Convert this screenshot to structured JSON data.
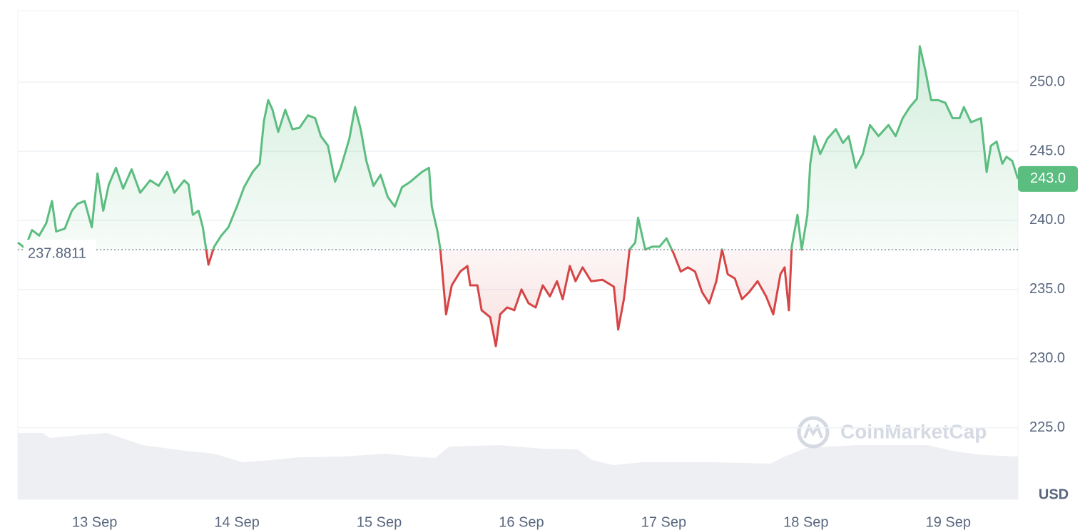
{
  "chart_data": {
    "type": "line",
    "x": [
      12.46,
      12.51,
      12.56,
      12.61,
      12.66,
      12.7,
      12.73,
      12.79,
      12.84,
      12.88,
      12.93,
      12.98,
      13.02,
      13.06,
      13.1,
      13.15,
      13.2,
      13.26,
      13.32,
      13.39,
      13.45,
      13.51,
      13.56,
      13.63,
      13.66,
      13.69,
      13.73,
      13.76,
      13.8,
      13.84,
      13.89,
      13.94,
      14.0,
      14.05,
      14.11,
      14.16,
      14.19,
      14.22,
      14.25,
      14.29,
      14.34,
      14.39,
      14.44,
      14.5,
      14.55,
      14.59,
      14.64,
      14.69,
      14.73,
      14.79,
      14.83,
      14.87,
      14.91,
      14.96,
      15.01,
      15.06,
      15.11,
      15.16,
      15.22,
      15.3,
      15.35,
      15.37,
      15.41,
      15.43,
      15.47,
      15.51,
      15.57,
      15.62,
      15.64,
      15.69,
      15.72,
      15.78,
      15.82,
      15.85,
      15.9,
      15.95,
      16.0,
      16.05,
      16.1,
      16.15,
      16.2,
      16.25,
      16.29,
      16.34,
      16.38,
      16.43,
      16.49,
      16.57,
      16.65,
      16.68,
      16.72,
      16.76,
      16.8,
      16.82,
      16.87,
      16.92,
      16.97,
      17.02,
      17.07,
      17.12,
      17.17,
      17.22,
      17.27,
      17.32,
      17.37,
      17.41,
      17.45,
      17.5,
      17.55,
      17.6,
      17.66,
      17.72,
      17.77,
      17.82,
      17.85,
      17.88,
      17.9,
      17.94,
      17.97,
      18.01,
      18.03,
      18.06,
      18.1,
      18.15,
      18.21,
      18.26,
      18.3,
      18.35,
      18.4,
      18.45,
      18.51,
      18.58,
      18.63,
      18.68,
      18.73,
      18.78,
      18.8,
      18.84,
      18.88,
      18.93,
      18.98,
      19.03,
      19.08,
      19.11,
      19.16,
      19.23,
      19.27,
      19.3,
      19.34,
      19.38,
      19.41,
      19.45,
      19.49
    ],
    "values": [
      238.4,
      238.0,
      239.3,
      238.9,
      239.8,
      241.4,
      239.2,
      239.4,
      240.7,
      241.2,
      241.4,
      239.5,
      243.4,
      240.7,
      242.6,
      243.8,
      242.3,
      243.7,
      242.0,
      242.9,
      242.5,
      243.5,
      242.0,
      242.9,
      242.6,
      240.4,
      240.7,
      239.5,
      236.8,
      238.1,
      238.9,
      239.5,
      241.0,
      242.4,
      243.5,
      244.1,
      247.2,
      248.7,
      248.0,
      246.4,
      248.0,
      246.6,
      246.7,
      247.6,
      247.4,
      246.1,
      245.4,
      242.8,
      243.8,
      245.9,
      248.2,
      246.6,
      244.3,
      242.5,
      243.3,
      241.7,
      241.0,
      242.4,
      242.8,
      243.5,
      243.8,
      241.0,
      239.2,
      237.9,
      233.2,
      235.3,
      236.3,
      236.7,
      235.3,
      235.3,
      233.5,
      233.0,
      230.9,
      233.2,
      233.7,
      233.5,
      235.0,
      234.0,
      233.7,
      235.3,
      234.5,
      235.6,
      234.3,
      236.7,
      235.6,
      236.6,
      235.6,
      235.7,
      235.2,
      232.1,
      234.3,
      237.9,
      238.4,
      240.2,
      237.9,
      238.1,
      238.1,
      238.7,
      237.6,
      236.3,
      236.6,
      236.3,
      234.8,
      234.0,
      235.6,
      237.9,
      236.1,
      235.8,
      234.3,
      234.8,
      235.6,
      234.5,
      233.2,
      236.1,
      236.6,
      233.5,
      238.1,
      240.4,
      237.9,
      240.4,
      244.1,
      246.1,
      244.8,
      245.9,
      246.6,
      245.6,
      246.1,
      243.8,
      244.8,
      246.9,
      246.1,
      246.9,
      246.1,
      247.4,
      248.2,
      248.8,
      252.6,
      250.8,
      248.7,
      248.7,
      248.5,
      247.4,
      247.4,
      248.2,
      247.1,
      247.4,
      243.5,
      245.4,
      245.7,
      244.1,
      244.6,
      244.3,
      243.0
    ],
    "colors": {
      "up": "#5bbd7f",
      "down": "#d64545"
    },
    "baseline": 237.8811,
    "current": {
      "value": 243.0,
      "label": "243.0"
    },
    "xlim": [
      12.46,
      19.49
    ],
    "xticks": [
      {
        "value": 13,
        "label": "13 Sep"
      },
      {
        "value": 14,
        "label": "14 Sep"
      },
      {
        "value": 15,
        "label": "15 Sep"
      },
      {
        "value": 16,
        "label": "16 Sep"
      },
      {
        "value": 17,
        "label": "17 Sep"
      },
      {
        "value": 18,
        "label": "18 Sep"
      },
      {
        "value": 19,
        "label": "19 Sep"
      }
    ],
    "ylim": [
      219.82,
      255.17
    ],
    "yticks": [
      {
        "value": 225,
        "label": "225.0"
      },
      {
        "value": 230,
        "label": "230.0"
      },
      {
        "value": 235,
        "label": "235.0"
      },
      {
        "value": 240,
        "label": "240.0"
      },
      {
        "value": 245,
        "label": "245.0"
      },
      {
        "value": 250,
        "label": "250.0"
      }
    ],
    "grid": true,
    "currency": "USD",
    "watermark": "CoinMarketCap"
  }
}
